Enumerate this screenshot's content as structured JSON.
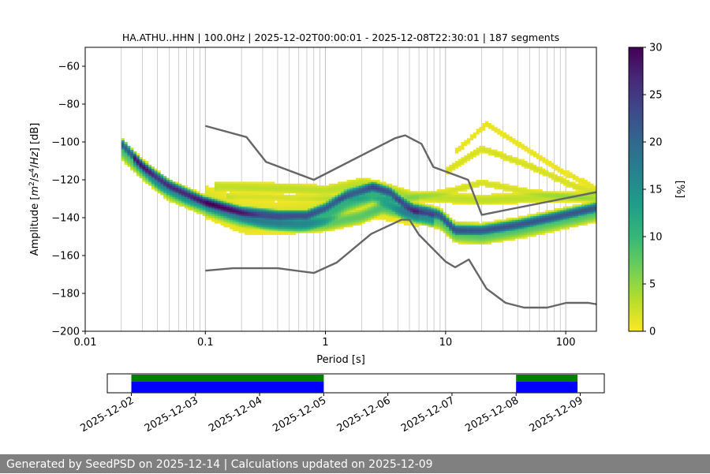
{
  "chart_data": [
    {
      "type": "heatmap",
      "title": "HA.ATHU..HHN | 100.0Hz | 2025-12-02T00:00:01 - 2025-12-08T22:30:01 | 187 segments",
      "xlabel": "Period [s]",
      "ylabel_parts": [
        "Amplitude [",
        "m",
        "2",
        "/",
        "s",
        "4",
        "/",
        "Hz",
        "] [dB]"
      ],
      "x_scale": "log",
      "xlim": [
        0.01,
        180
      ],
      "ylim": [
        -200,
        -50
      ],
      "x_ticks": [
        {
          "value": 0.01,
          "label": "0.01"
        },
        {
          "value": 0.1,
          "label": "0.1"
        },
        {
          "value": 1,
          "label": "1"
        },
        {
          "value": 10,
          "label": "10"
        },
        {
          "value": 100,
          "label": "100"
        }
      ],
      "y_ticks": [
        {
          "value": -60,
          "label": "−60"
        },
        {
          "value": -80,
          "label": "−80"
        },
        {
          "value": -100,
          "label": "−100"
        },
        {
          "value": -120,
          "label": "−120"
        },
        {
          "value": -140,
          "label": "−140"
        },
        {
          "value": -160,
          "label": "−160"
        },
        {
          "value": -180,
          "label": "−180"
        },
        {
          "value": -200,
          "label": "−200"
        }
      ],
      "grid": "x-major-and-minor",
      "colorbar": {
        "label": "[%]",
        "colormap": "viridis_r",
        "range": [
          0,
          30
        ],
        "ticks": [
          {
            "value": 0,
            "label": "0"
          },
          {
            "value": 5,
            "label": "5"
          },
          {
            "value": 10,
            "label": "10"
          },
          {
            "value": 15,
            "label": "15"
          },
          {
            "value": 20,
            "label": "20"
          },
          {
            "value": 25,
            "label": "25"
          },
          {
            "value": 30,
            "label": "30"
          }
        ],
        "colors": [
          "#fde725",
          "#b5de2b",
          "#6ece58",
          "#35b779",
          "#1f9e89",
          "#26828e",
          "#31688e",
          "#3e4989",
          "#482878",
          "#440154"
        ]
      },
      "reference_curves": {
        "color": "#666666",
        "high_noise_model": [
          [
            0.1,
            -91.5
          ],
          [
            0.22,
            -97.4
          ],
          [
            0.32,
            -110.5
          ],
          [
            0.8,
            -120.0
          ],
          [
            3.8,
            -98.0
          ],
          [
            4.6,
            -96.5
          ],
          [
            6.3,
            -101.0
          ],
          [
            7.9,
            -113.2
          ],
          [
            15.4,
            -120.0
          ],
          [
            20.0,
            -138.5
          ],
          [
            180,
            -126.5
          ]
        ],
        "low_noise_model": [
          [
            0.1,
            -168.0
          ],
          [
            0.17,
            -166.7
          ],
          [
            0.4,
            -166.7
          ],
          [
            0.8,
            -169.2
          ],
          [
            1.24,
            -163.7
          ],
          [
            2.4,
            -148.6
          ],
          [
            4.3,
            -141.1
          ],
          [
            5.0,
            -141.1
          ],
          [
            6.0,
            -149.0
          ],
          [
            10.0,
            -163.2
          ],
          [
            12.0,
            -166.2
          ],
          [
            15.6,
            -162.1
          ],
          [
            21.9,
            -177.5
          ],
          [
            31.6,
            -185.0
          ],
          [
            45.0,
            -187.5
          ],
          [
            70.0,
            -187.5
          ],
          [
            101.0,
            -185.0
          ],
          [
            154.0,
            -185.0
          ],
          [
            180,
            -185.7
          ]
        ]
      },
      "density_bands": [
        {
          "name": "",
          "width_db": 3,
          "pct": 14,
          "points": [
            [
              0.02,
              -101
            ],
            [
              0.03,
              -113
            ],
            [
              0.05,
              -123
            ],
            [
              0.1,
              -132
            ],
            [
              0.2,
              -137
            ],
            [
              0.4,
              -139
            ],
            [
              0.7,
              -139
            ],
            [
              1.0,
              -135
            ],
            [
              1.5,
              -128
            ],
            [
              2.5,
              -124
            ],
            [
              3.5,
              -127
            ],
            [
              4.5,
              -133
            ],
            [
              5.5,
              -136
            ],
            [
              7,
              -137
            ],
            [
              9,
              -139
            ],
            [
              12,
              -147
            ],
            [
              20,
              -147
            ],
            [
              40,
              -144
            ],
            [
              80,
              -140
            ],
            [
              180,
              -135
            ]
          ]
        },
        {
          "name": "",
          "width_db": 6,
          "pct": 9,
          "points": [
            [
              0.02,
              -104
            ],
            [
              0.03,
              -115
            ],
            [
              0.05,
              -126
            ],
            [
              0.1,
              -134
            ],
            [
              0.2,
              -140
            ],
            [
              0.4,
              -142
            ],
            [
              0.7,
              -142
            ],
            [
              1.0,
              -139
            ],
            [
              1.5,
              -132
            ],
            [
              2.5,
              -127
            ],
            [
              3.5,
              -131
            ],
            [
              4.5,
              -136
            ],
            [
              5.5,
              -138
            ],
            [
              7,
              -139
            ],
            [
              9,
              -141
            ],
            [
              12,
              -148
            ],
            [
              20,
              -149
            ],
            [
              40,
              -146
            ],
            [
              80,
              -142
            ],
            [
              180,
              -137
            ]
          ]
        },
        {
          "name": "",
          "width_db": 4,
          "pct": 7,
          "points": [
            [
              0.025,
              -109
            ],
            [
              0.04,
              -122
            ],
            [
              0.07,
              -130
            ],
            [
              0.15,
              -137
            ],
            [
              0.3,
              -143
            ],
            [
              0.6,
              -145
            ],
            [
              1.0,
              -144
            ],
            [
              2.0,
              -140
            ],
            [
              3.0,
              -135
            ],
            [
              4.5,
              -138
            ],
            [
              6,
              -140
            ],
            [
              8,
              -142
            ]
          ]
        },
        {
          "name": "",
          "width_db": 10,
          "pct": 2,
          "points": [
            [
              0.1,
              -132
            ],
            [
              0.2,
              -140
            ],
            [
              0.4,
              -141
            ],
            [
              0.8,
              -139
            ],
            [
              1.5,
              -133
            ],
            [
              2.5,
              -132
            ],
            [
              4.0,
              -134
            ],
            [
              6.0,
              -137
            ]
          ]
        },
        {
          "name": "",
          "width_db": 3,
          "pct": 3,
          "points": [
            [
              0.12,
              -124
            ],
            [
              0.5,
              -125
            ],
            [
              1.0,
              -126
            ],
            [
              2.0,
              -122
            ],
            [
              3.0,
              -124
            ],
            [
              5.0,
              -129
            ],
            [
              10,
              -130
            ],
            [
              20,
              -131
            ],
            [
              50,
              -130
            ],
            [
              180,
              -129
            ]
          ]
        },
        {
          "name": "",
          "width_db": 2,
          "pct": 2,
          "points": [
            [
              0.15,
              -129
            ],
            [
              0.6,
              -130
            ],
            [
              1.5,
              -130
            ],
            [
              4.0,
              -131
            ],
            [
              10,
              -127
            ],
            [
              20,
              -122
            ],
            [
              50,
              -127
            ],
            [
              180,
              -131
            ]
          ]
        },
        {
          "name": "",
          "width_db": 2,
          "pct": 2,
          "points": [
            [
              10,
              -116
            ],
            [
              20,
              -104
            ],
            [
              50,
              -113
            ],
            [
              120,
              -124
            ],
            [
              180,
              -127
            ]
          ]
        },
        {
          "name": "",
          "width_db": 2,
          "pct": 1,
          "points": [
            [
              12,
              -106
            ],
            [
              22,
              -91
            ],
            [
              40,
              -101
            ],
            [
              100,
              -117
            ],
            [
              180,
              -125
            ]
          ]
        }
      ]
    },
    {
      "type": "timeline",
      "x_ticks": [
        "2025-12-02",
        "2025-12-03",
        "2025-12-04",
        "2025-12-05",
        "2025-12-06",
        "2025-12-07",
        "2025-12-08",
        "2025-12-09"
      ],
      "xlim": [
        "2025-12-01T15:00",
        "2025-12-09T09:00"
      ],
      "segments": [
        {
          "name": "",
          "color": "#008000",
          "ranges": [
            [
              "2025-12-02T00:00",
              "2025-12-05T00:00"
            ],
            [
              "2025-12-08T00:00",
              "2025-12-08T23:00"
            ]
          ]
        },
        {
          "name": "",
          "color": "#0000ff",
          "ranges": [
            [
              "2025-12-02T00:00",
              "2025-12-05T00:00"
            ],
            [
              "2025-12-08T00:00",
              "2025-12-08T23:00"
            ]
          ]
        }
      ]
    }
  ],
  "footer": {
    "text": "Generated by SeedPSD on 2025-12-14 | Calculations updated on 2025-12-09"
  }
}
